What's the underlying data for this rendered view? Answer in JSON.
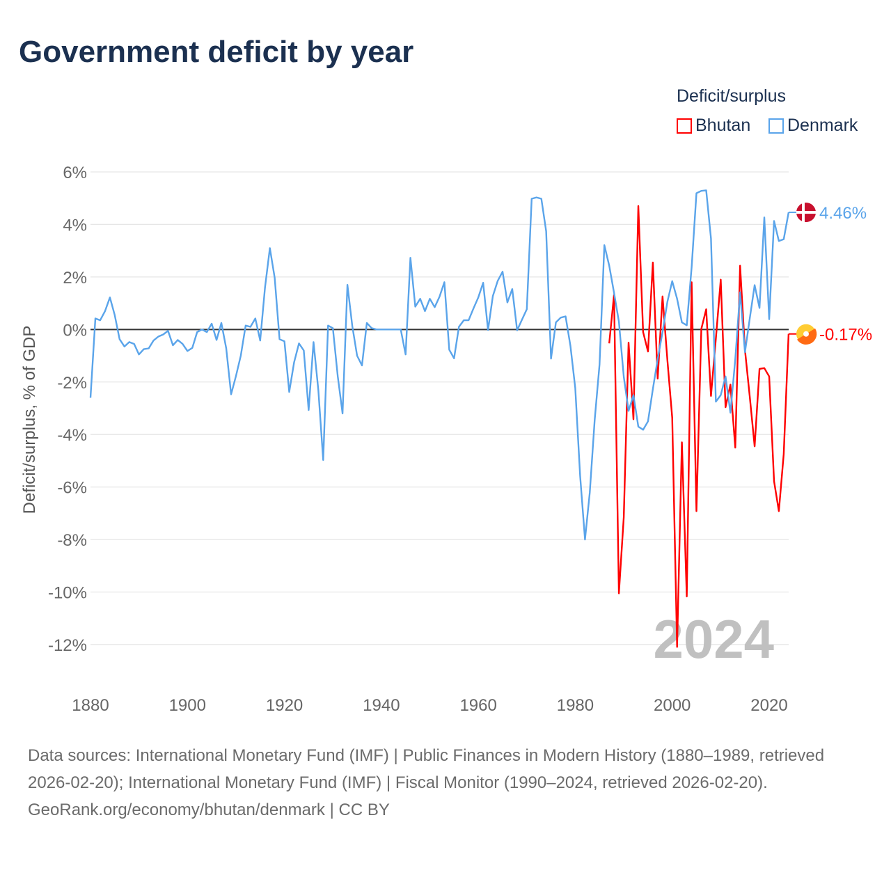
{
  "title": "Government deficit by year",
  "legend": {
    "title": "Deficit/surplus",
    "items": [
      {
        "label": "Bhutan",
        "color": "#ff0000"
      },
      {
        "label": "Denmark",
        "color": "#5aa4ea"
      }
    ]
  },
  "footer": {
    "sources": "Data sources: International Monetary Fund (IMF) | Public Finances in Modern History (1880–1989, retrieved 2026-02-20); International Monetary Fund (IMF) | Fiscal Monitor (1990–2024, retrieved 2026-02-20).",
    "credit": "GeoRank.org/economy/bhutan/denmark | CC BY"
  },
  "chart_data": {
    "type": "line",
    "title": "Government deficit by year",
    "ylabel": "Deficit/surplus, % of GDP",
    "xlabel": "",
    "xlim": [
      1880,
      2024
    ],
    "ylim": [
      -12,
      6
    ],
    "x_ticks": [
      "1880",
      "1900",
      "1920",
      "1940",
      "1960",
      "1980",
      "2000",
      "2020"
    ],
    "y_ticks": [
      "6%",
      "4%",
      "2%",
      "0%",
      "-2%",
      "-4%",
      "-6%",
      "-8%",
      "-10%",
      "-12%"
    ],
    "year_watermark": "2024",
    "grid": true,
    "legend_position": "top-right",
    "series": [
      {
        "name": "Denmark",
        "color": "#5aa4ea",
        "start_year": 1880,
        "end_label": "4.46%",
        "values": [
          -2.6,
          0.42,
          0.35,
          0.7,
          1.22,
          0.55,
          -0.37,
          -0.65,
          -0.48,
          -0.55,
          -0.95,
          -0.75,
          -0.72,
          -0.42,
          -0.27,
          -0.19,
          -0.05,
          -0.6,
          -0.4,
          -0.55,
          -0.82,
          -0.7,
          -0.1,
          0.0,
          -0.1,
          0.22,
          -0.4,
          0.25,
          -0.72,
          -2.47,
          -1.78,
          -1.0,
          0.15,
          0.1,
          0.42,
          -0.42,
          1.6,
          3.1,
          1.97,
          -0.37,
          -0.45,
          -2.38,
          -1.25,
          -0.53,
          -0.8,
          -3.07,
          -0.48,
          -2.3,
          -4.97,
          0.15,
          0.05,
          -1.78,
          -3.2,
          1.7,
          0.13,
          -1.0,
          -1.37,
          0.25,
          0.05,
          0,
          0,
          0,
          0,
          0,
          0,
          -0.95,
          2.73,
          0.87,
          1.17,
          0.7,
          1.17,
          0.85,
          1.25,
          1.8,
          -0.77,
          -1.1,
          0.1,
          0.35,
          0.35,
          0.8,
          1.22,
          1.78,
          -0.02,
          1.27,
          1.85,
          2.2,
          1.03,
          1.54,
          -0.03,
          0.37,
          0.77,
          4.98,
          5.03,
          4.98,
          3.74,
          -1.11,
          0.27,
          0.45,
          0.5,
          -0.63,
          -2.23,
          -5.57,
          -8.0,
          -6.2,
          -3.45,
          -1.33,
          3.21,
          2.43,
          1.4,
          0.3,
          -1.8,
          -3.1,
          -2.5,
          -3.7,
          -3.82,
          -3.5,
          -2.27,
          -1.13,
          -0.1,
          1.06,
          1.84,
          1.17,
          0.27,
          0.16,
          2.37,
          5.19,
          5.28,
          5.3,
          3.46,
          -2.75,
          -2.5,
          -1.79,
          -3.17,
          -1.13,
          1.42,
          -0.87,
          0.42,
          1.69,
          0.82,
          4.27,
          0.39,
          4.13,
          3.37,
          3.44,
          4.46
        ]
      },
      {
        "name": "Bhutan",
        "color": "#ff0000",
        "start_year": 1987,
        "end_label": "-0.17%",
        "values": [
          -0.53,
          1.31,
          -10.05,
          -7.15,
          -0.5,
          -3.42,
          4.7,
          -0.1,
          -0.84,
          2.55,
          -1.87,
          1.26,
          -1.18,
          -3.36,
          -12.09,
          -4.3,
          -10.17,
          1.8,
          -6.92,
          0.02,
          0.77,
          -2.53,
          -0.35,
          1.9,
          -2.96,
          -2.1,
          -4.5,
          2.43,
          -0.78,
          -2.56,
          -4.45,
          -1.5,
          -1.47,
          -1.79,
          -5.78,
          -6.92,
          -4.74,
          -0.17
        ]
      }
    ]
  }
}
